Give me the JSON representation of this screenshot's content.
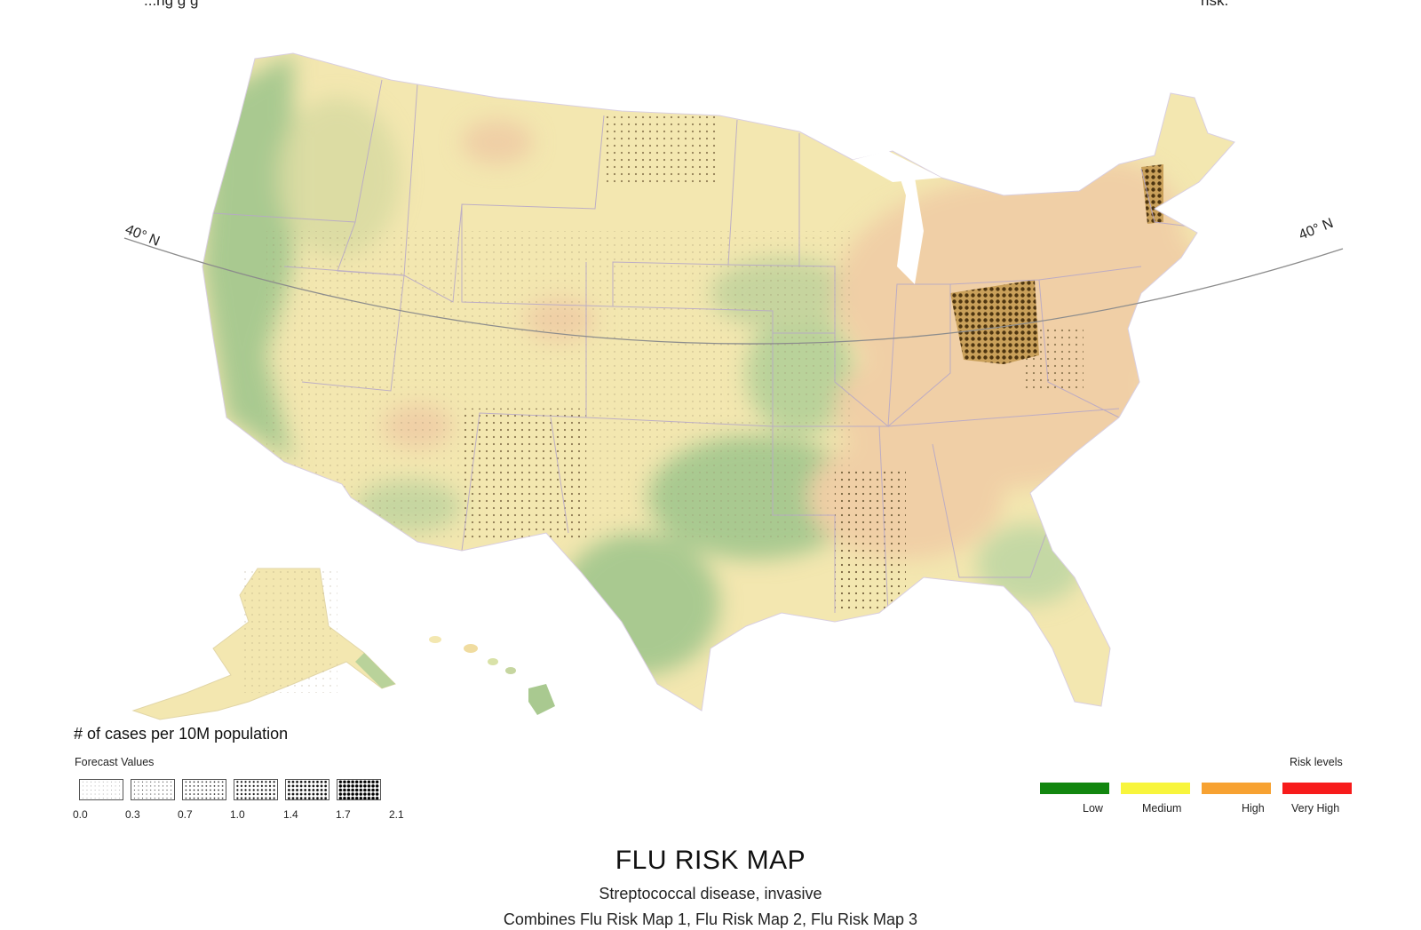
{
  "header": {
    "left_fragment": "...ng   g g",
    "right_fragment": "risk."
  },
  "map": {
    "latitude_label": "40° N"
  },
  "legend": {
    "title": "# of cases per 10M population",
    "forecast_label": "Forecast Values",
    "ticks": [
      "0.0",
      "0.3",
      "0.7",
      "1.0",
      "1.4",
      "1.7",
      "2.1"
    ],
    "risk_title": "Risk levels",
    "risk_levels": [
      {
        "label": "Low",
        "color": "#12860f"
      },
      {
        "label": "Medium",
        "color": "#f8f53c"
      },
      {
        "label": "High",
        "color": "#f7a232"
      },
      {
        "label": "Very High",
        "color": "#f71b1b"
      }
    ]
  },
  "footer": {
    "title": "FLU RISK MAP",
    "subtitle": "Streptococcal disease, invasive",
    "combines": "Combines Flu Risk Map 1, Flu Risk Map 2, Flu Risk Map 3"
  },
  "colors": {
    "low_fill": "#a9c990",
    "medium_fill": "#f3e7b0",
    "high_fill": "#f0cfa6",
    "border": "#b7a8c7",
    "hatch": "#5b4018"
  }
}
